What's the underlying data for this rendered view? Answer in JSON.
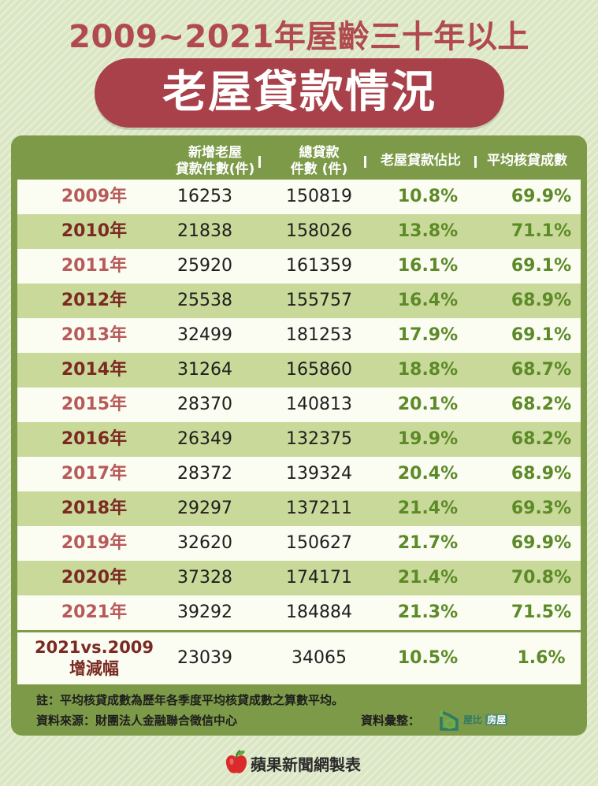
{
  "title_line1": "2009~2021年屋齡三十年以上",
  "title_line2": "老屋貸款情況",
  "columns": {
    "new_old_house_line1": "新增老屋",
    "new_old_house_line2": "貸款件數(件)",
    "total_line1": "總貸款",
    "total_line2": "件數 (件)",
    "ratio": "老屋貸款佔比",
    "avg": "平均核貸成數"
  },
  "chart_data": {
    "type": "table",
    "rows": [
      {
        "year": "2009年",
        "new_loans": "16253",
        "total_loans": "150819",
        "ratio": "10.8%",
        "avg_ltv": "69.9%"
      },
      {
        "year": "2010年",
        "new_loans": "21838",
        "total_loans": "158026",
        "ratio": "13.8%",
        "avg_ltv": "71.1%"
      },
      {
        "year": "2011年",
        "new_loans": "25920",
        "total_loans": "161359",
        "ratio": "16.1%",
        "avg_ltv": "69.1%"
      },
      {
        "year": "2012年",
        "new_loans": "25538",
        "total_loans": "155757",
        "ratio": "16.4%",
        "avg_ltv": "68.9%"
      },
      {
        "year": "2013年",
        "new_loans": "32499",
        "total_loans": "181253",
        "ratio": "17.9%",
        "avg_ltv": "69.1%"
      },
      {
        "year": "2014年",
        "new_loans": "31264",
        "total_loans": "165860",
        "ratio": "18.8%",
        "avg_ltv": "68.7%"
      },
      {
        "year": "2015年",
        "new_loans": "28370",
        "total_loans": "140813",
        "ratio": "20.1%",
        "avg_ltv": "68.2%"
      },
      {
        "year": "2016年",
        "new_loans": "26349",
        "total_loans": "132375",
        "ratio": "19.9%",
        "avg_ltv": "68.2%"
      },
      {
        "year": "2017年",
        "new_loans": "28372",
        "total_loans": "139324",
        "ratio": "20.4%",
        "avg_ltv": "68.9%"
      },
      {
        "year": "2018年",
        "new_loans": "29297",
        "total_loans": "137211",
        "ratio": "21.4%",
        "avg_ltv": "69.3%"
      },
      {
        "year": "2019年",
        "new_loans": "32620",
        "total_loans": "150627",
        "ratio": "21.7%",
        "avg_ltv": "69.9%"
      },
      {
        "year": "2020年",
        "new_loans": "37328",
        "total_loans": "174171",
        "ratio": "21.4%",
        "avg_ltv": "70.8%"
      },
      {
        "year": "2021年",
        "new_loans": "39292",
        "total_loans": "184884",
        "ratio": "21.3%",
        "avg_ltv": "71.5%"
      }
    ],
    "summary": {
      "label_line1": "2021vs.2009",
      "label_line2": "增減幅",
      "new_loans": "23039",
      "total_loans": "34065",
      "ratio": "10.5%",
      "avg_ltv": "1.6%"
    }
  },
  "notes": {
    "note": "註：平均核貸成數為歷年各季度平均核貸成數之算數平均。",
    "source": "資料來源：財團法人金融聯合徵信中心",
    "compiled_by": "資料彙整："
  },
  "logo": {
    "name_part1": "屋比",
    "name_part2": "房屋"
  },
  "footer": "蘋果新聞網製表",
  "colors": {
    "title_red": "#b04a4e",
    "pill_red": "#a84149",
    "board_green": "#7c9a48",
    "value_green": "#5d8a28"
  },
  "icons": [
    "apple-icon",
    "house-logo-icon"
  ]
}
